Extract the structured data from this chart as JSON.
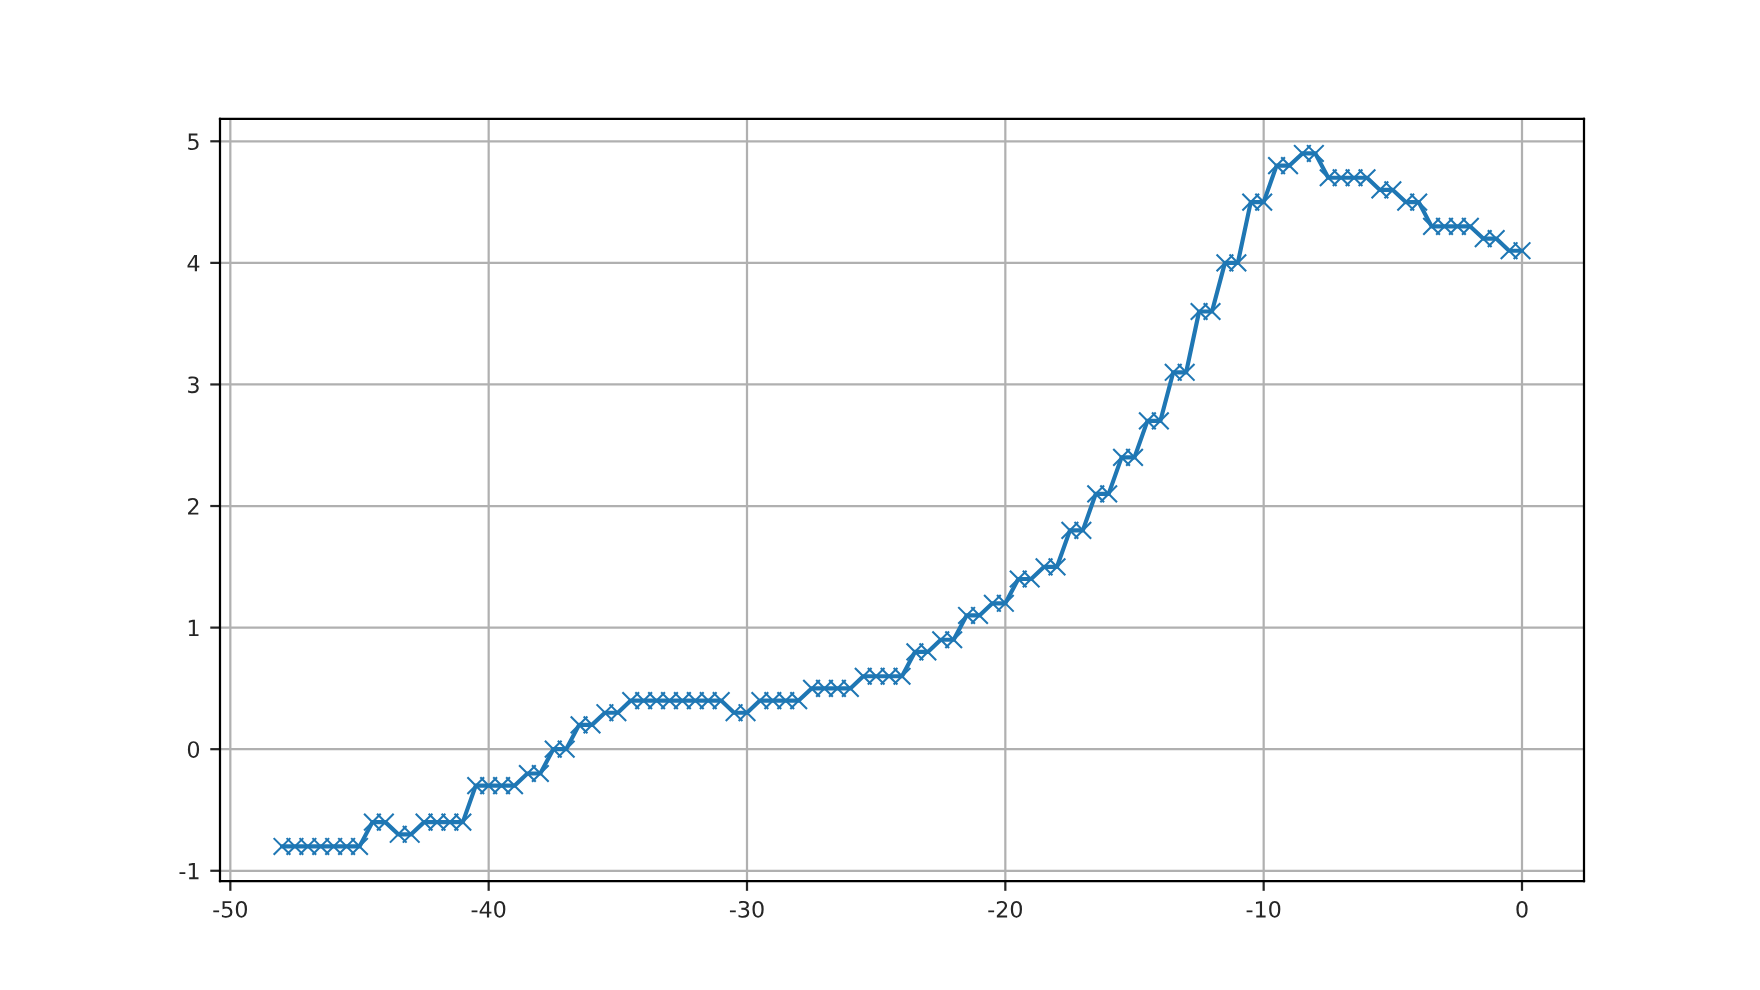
{
  "chart_data": {
    "type": "line",
    "marker": "cross",
    "line_style": "solid",
    "grid": true,
    "x": [
      -48,
      -47.5,
      -47,
      -46.5,
      -46,
      -45.5,
      -45,
      -44.5,
      -44,
      -43.5,
      -43,
      -42.5,
      -42,
      -41.5,
      -41,
      -40.5,
      -40,
      -39.5,
      -39,
      -38.5,
      -38,
      -37.5,
      -37,
      -36.5,
      -36,
      -35.5,
      -35,
      -34.5,
      -34,
      -33.5,
      -33,
      -32.5,
      -32,
      -31.5,
      -31,
      -30.5,
      -30,
      -29.5,
      -29,
      -28.5,
      -28,
      -27.5,
      -27,
      -26.5,
      -26,
      -25.5,
      -25,
      -24.5,
      -24,
      -23.5,
      -23,
      -22.5,
      -22,
      -21.5,
      -21,
      -20.5,
      -20,
      -19.5,
      -19,
      -18.5,
      -18,
      -17.5,
      -17,
      -16.5,
      -16,
      -15.5,
      -15,
      -14.5,
      -14,
      -13.5,
      -13,
      -12.5,
      -12,
      -11.5,
      -11,
      -10.5,
      -10,
      -9.5,
      -9,
      -8.5,
      -8,
      -7.5,
      -7,
      -6.5,
      -6,
      -5.5,
      -5,
      -4.5,
      -4,
      -3.5,
      -3,
      -2.5,
      -2,
      -1.5,
      -1,
      -0.5,
      0
    ],
    "series": [
      {
        "color": "#1f77b4",
        "values": [
          -0.8,
          -0.8,
          -0.8,
          -0.8,
          -0.8,
          -0.8,
          -0.8,
          -0.6,
          -0.6,
          -0.7,
          -0.7,
          -0.6,
          -0.6,
          -0.6,
          -0.6,
          -0.3,
          -0.3,
          -0.3,
          -0.3,
          -0.2,
          -0.2,
          0.0,
          0.0,
          0.2,
          0.2,
          0.3,
          0.3,
          0.4,
          0.4,
          0.4,
          0.4,
          0.4,
          0.4,
          0.4,
          0.4,
          0.3,
          0.3,
          0.4,
          0.4,
          0.4,
          0.4,
          0.5,
          0.5,
          0.5,
          0.5,
          0.6,
          0.6,
          0.6,
          0.6,
          0.8,
          0.8,
          0.9,
          0.9,
          1.1,
          1.1,
          1.2,
          1.2,
          1.4,
          1.4,
          1.5,
          1.5,
          1.8,
          1.8,
          2.1,
          2.1,
          2.4,
          2.4,
          2.7,
          2.7,
          3.1,
          3.1,
          3.6,
          3.6,
          4.0,
          4.0,
          4.5,
          4.5,
          4.8,
          4.8,
          4.9,
          4.9,
          4.7,
          4.7,
          4.7,
          4.7,
          4.6,
          4.6,
          4.5,
          4.5,
          4.3,
          4.3,
          4.3,
          4.3,
          4.2,
          4.2,
          4.1,
          4.1
        ]
      }
    ],
    "xlim": [
      -50.4,
      2.4
    ],
    "ylim": [
      -1.085,
      5.185
    ],
    "xticks": [
      -50,
      -40,
      -30,
      -20,
      -10,
      0
    ],
    "yticks": [
      -1,
      0,
      1,
      2,
      3,
      4,
      5
    ]
  }
}
